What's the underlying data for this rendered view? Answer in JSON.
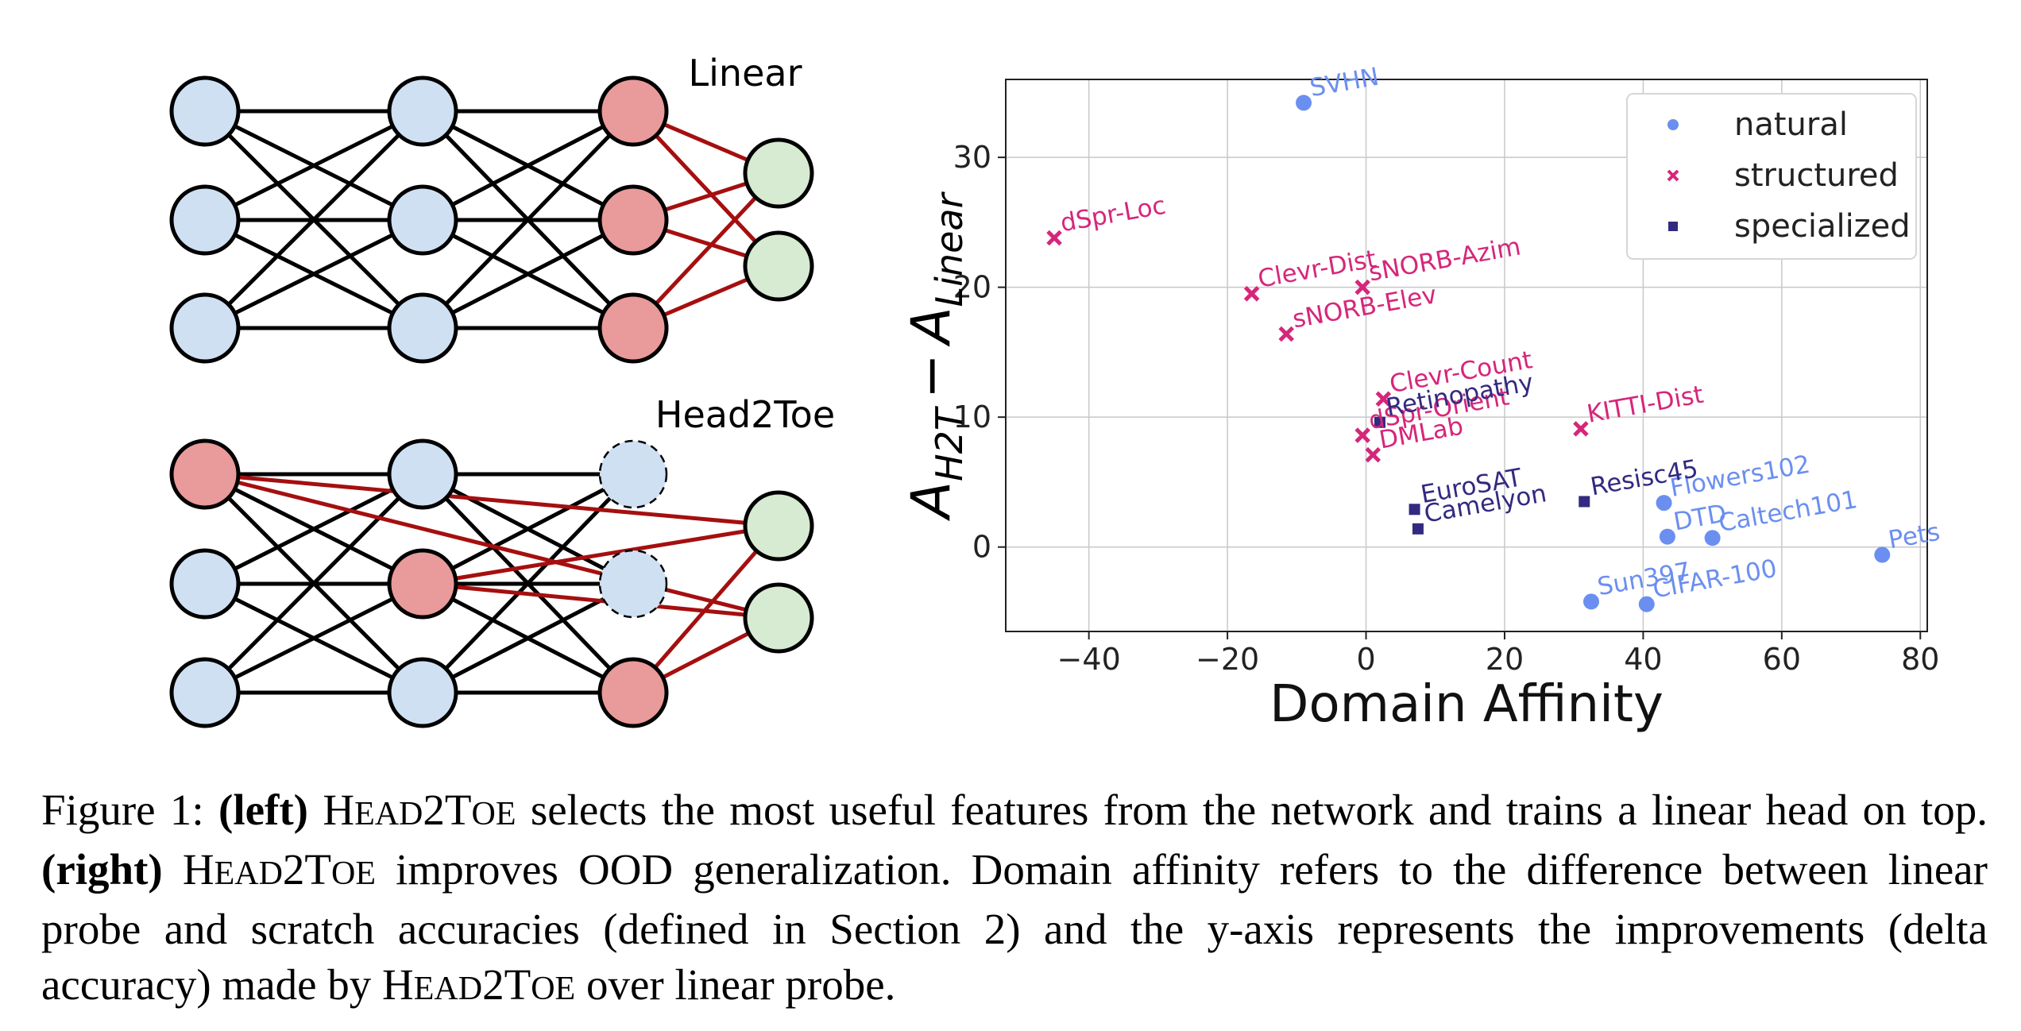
{
  "left_panel": {
    "linear_label": "Linear",
    "head2toe_label": "Head2Toe"
  },
  "chart_data": {
    "type": "scatter",
    "xlabel": "Domain Affinity",
    "ylabel_main": "A",
    "ylabel_sub1": "H2T",
    "ylabel_minus": "−",
    "ylabel_sub2": "Linear",
    "xlim": [
      -52,
      81
    ],
    "ylim": [
      -6.5,
      36
    ],
    "xticks": [
      -40,
      -20,
      0,
      20,
      40,
      60,
      80
    ],
    "xtick_labels": [
      "−40",
      "−20",
      "0",
      "20",
      "40",
      "60",
      "80"
    ],
    "yticks": [
      0,
      10,
      20,
      30
    ],
    "ytick_labels": [
      "0",
      "10",
      "20",
      "30"
    ],
    "grid": true,
    "legend_position": "top-right",
    "series": [
      {
        "name": "natural",
        "marker": "circle",
        "color": "#6b8ff0",
        "points": [
          {
            "label": "SVHN",
            "x": -9,
            "y": 34.2
          },
          {
            "label": "Flowers102",
            "x": 43,
            "y": 3.4
          },
          {
            "label": "DTD",
            "x": 43.5,
            "y": 0.8
          },
          {
            "label": "Caltech101",
            "x": 50,
            "y": 0.7
          },
          {
            "label": "Pets",
            "x": 74.5,
            "y": -0.6
          },
          {
            "label": "Sun397",
            "x": 32.5,
            "y": -4.2
          },
          {
            "label": "CIFAR-100",
            "x": 40.5,
            "y": -4.4
          }
        ]
      },
      {
        "name": "structured",
        "marker": "x",
        "color": "#d6267a",
        "points": [
          {
            "label": "dSpr-Loc",
            "x": -45,
            "y": 23.8
          },
          {
            "label": "Clevr-Dist",
            "x": -16.5,
            "y": 19.5
          },
          {
            "label": "sNORB-Azim",
            "x": -0.5,
            "y": 20
          },
          {
            "label": "sNORB-Elev",
            "x": -11.5,
            "y": 16.4
          },
          {
            "label": "Clevr-Count",
            "x": 2.5,
            "y": 11.4
          },
          {
            "label": "dSpr-Orient",
            "x": -0.5,
            "y": 8.6
          },
          {
            "label": "DMLab",
            "x": 1,
            "y": 7.1
          },
          {
            "label": "KITTI-Dist",
            "x": 31,
            "y": 9.1
          }
        ]
      },
      {
        "name": "specialized",
        "marker": "square",
        "color": "#322a80",
        "points": [
          {
            "label": "Retinopathy",
            "x": 2,
            "y": 9.6
          },
          {
            "label": "EuroSAT",
            "x": 7,
            "y": 2.9
          },
          {
            "label": "Camelyon",
            "x": 7.5,
            "y": 1.4
          },
          {
            "label": "Resisc45",
            "x": 31.5,
            "y": 3.5
          }
        ]
      }
    ]
  },
  "caption": {
    "fig_label": "Figure 1:",
    "left_tag": "(left)",
    "method_h": "H",
    "method_ead": "EAD",
    "method_2t": "2T",
    "method_oe": "OE",
    "text1": "selects the most useful features from the network and trains a linear head on top.",
    "right_tag": "(right)",
    "text2": "improves OOD generalization. Domain affinity refers to the difference between linear probe and scratch accuracies (defined in Section 2) and the y-axis represents the improvements (delta accuracy) made by",
    "text3": "over linear probe."
  }
}
